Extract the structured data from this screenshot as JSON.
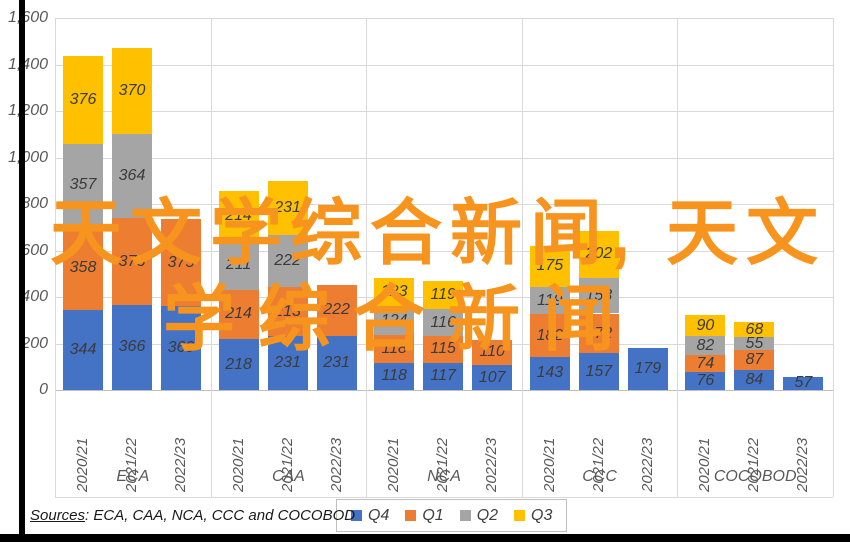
{
  "watermark": {
    "line1": "天文学综合新闻, 天文",
    "line2": "学综合新闻",
    "color": "#F7941E"
  },
  "sources": {
    "prefix": "Sources",
    "text": ": ECA, CAA, NCA, CCC and COCOBOD"
  },
  "chart_data": {
    "type": "bar",
    "subtype": "stacked-column",
    "title": "",
    "xlabel": "",
    "ylabel": "",
    "grid": "horizontal",
    "y_axis": {
      "min": 0,
      "max": 1600,
      "step": 200,
      "tick_labels": [
        "0",
        "200",
        "400",
        "600",
        "800",
        "1,000",
        "1,200",
        "1,400",
        "1,600"
      ]
    },
    "stack_order_bottom_to_top": [
      "Q4",
      "Q1",
      "Q2",
      "Q3"
    ],
    "colors": {
      "Q4": "#4472C4",
      "Q1": "#ED7D31",
      "Q2": "#A5A5A5",
      "Q3": "#FFC000"
    },
    "legend_position": "bottom",
    "legend": [
      {
        "label": "Q4",
        "color": "#4472C4"
      },
      {
        "label": "Q1",
        "color": "#ED7D31"
      },
      {
        "label": "Q2",
        "color": "#A5A5A5"
      },
      {
        "label": "Q3",
        "color": "#FFC000"
      }
    ],
    "groups": [
      {
        "label": "ECA",
        "bars": [
          {
            "year": "2020/21",
            "segments": {
              "Q4": 344,
              "Q1": 358,
              "Q2": 357,
              "Q3": 376
            }
          },
          {
            "year": "2021/22",
            "segments": {
              "Q4": 366,
              "Q1": 373,
              "Q2": 364,
              "Q3": 370
            }
          },
          {
            "year": "2022/23",
            "segments": {
              "Q4": 360,
              "Q1": 375
            }
          }
        ]
      },
      {
        "label": "CAA",
        "bars": [
          {
            "year": "2020/21",
            "segments": {
              "Q4": 218,
              "Q1": 214,
              "Q2": 211,
              "Q3": 214
            }
          },
          {
            "year": "2021/22",
            "segments": {
              "Q4": 231,
              "Q1": 213,
              "Q2": 222,
              "Q3": 231
            }
          },
          {
            "year": "2022/23",
            "segments": {
              "Q4": 231,
              "Q1": 222
            }
          }
        ]
      },
      {
        "label": "NCA",
        "bars": [
          {
            "year": "2020/21",
            "segments": {
              "Q4": 118,
              "Q1": 118,
              "Q2": 124,
              "Q3": 123
            }
          },
          {
            "year": "2021/22",
            "segments": {
              "Q4": 117,
              "Q1": 115,
              "Q2": 116,
              "Q3": 119
            }
          },
          {
            "year": "2022/23",
            "segments": {
              "Q4": 107,
              "Q1": 110
            }
          }
        ]
      },
      {
        "label": "CCC",
        "bars": [
          {
            "year": "2020/21",
            "segments": {
              "Q4": 143,
              "Q1": 182,
              "Q2": 119,
              "Q3": 175
            }
          },
          {
            "year": "2021/22",
            "segments": {
              "Q4": 157,
              "Q1": 172,
              "Q2": 153,
              "Q3": 202
            }
          },
          {
            "year": "2022/23",
            "segments": {
              "Q4": 179
            }
          }
        ]
      },
      {
        "label": "COCOBOD",
        "bars": [
          {
            "year": "2020/21",
            "segments": {
              "Q4": 76,
              "Q1": 74,
              "Q2": 82,
              "Q3": 90
            }
          },
          {
            "year": "2021/22",
            "segments": {
              "Q4": 84,
              "Q1": 87,
              "Q2": 55,
              "Q3": 68
            }
          },
          {
            "year": "2022/23",
            "segments": {
              "Q4": 57
            }
          }
        ]
      }
    ]
  }
}
